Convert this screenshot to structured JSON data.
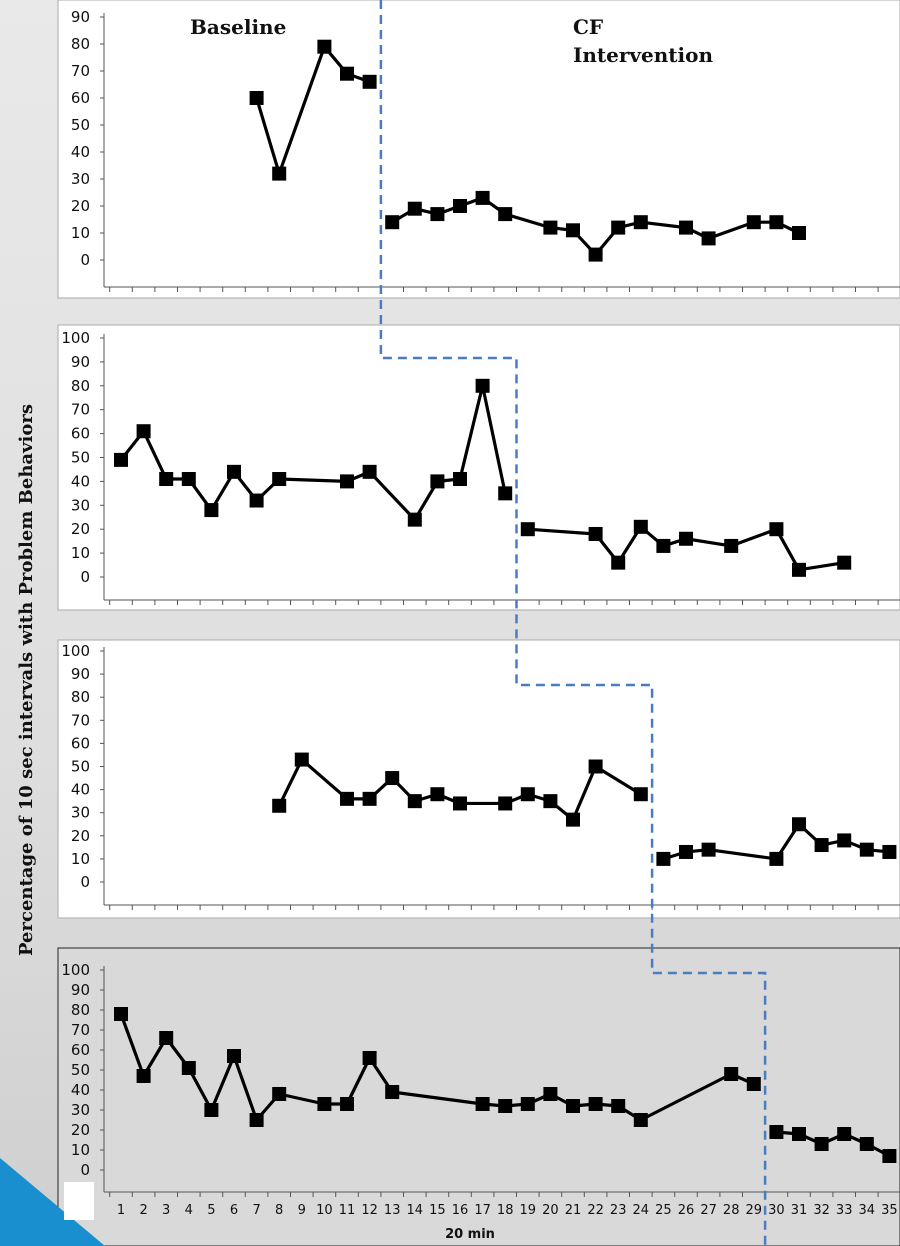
{
  "ylabel": "Percentage of 10 sec intervals with Problem Behaviors",
  "xlabel": "20 min",
  "phase_labels": {
    "baseline": "Baseline",
    "intervention_line1": "CF",
    "intervention_line2": "Intervention"
  },
  "colors": {
    "series": "#000000",
    "phase_line": "#4a7cc0",
    "corner_accent": "#1a8fd0"
  },
  "x_ticks": [
    "1",
    "2",
    "3",
    "4",
    "5",
    "6",
    "7",
    "8",
    "9",
    "10",
    "11",
    "12",
    "13",
    "14",
    "15",
    "16",
    "17",
    "18",
    "19",
    "20",
    "21",
    "22",
    "23",
    "24",
    "25",
    "26",
    "27",
    "28",
    "29",
    "30",
    "31",
    "32",
    "33",
    "34",
    "35"
  ],
  "chart_data": [
    {
      "type": "line",
      "ylim": [
        0,
        90
      ],
      "yticks": [
        "0",
        "10",
        "20",
        "30",
        "40",
        "50",
        "60",
        "70",
        "80",
        "90"
      ],
      "phase_change_after_session": 12,
      "series": [
        {
          "phase": "baseline",
          "x": [
            7,
            8,
            10,
            11,
            12
          ],
          "y": [
            60,
            32,
            79,
            69,
            66
          ]
        },
        {
          "phase": "intervention",
          "x": [
            13,
            14,
            15,
            16,
            17,
            18,
            20,
            21,
            22,
            23,
            24,
            26,
            27,
            29,
            30,
            31
          ],
          "y": [
            14,
            19,
            17,
            20,
            23,
            17,
            12,
            11,
            2,
            12,
            14,
            12,
            8,
            14,
            14,
            10
          ]
        }
      ]
    },
    {
      "type": "line",
      "ylim": [
        0,
        100
      ],
      "yticks": [
        "0",
        "10",
        "20",
        "30",
        "40",
        "50",
        "60",
        "70",
        "80",
        "90",
        "100"
      ],
      "phase_change_after_session": 18,
      "series": [
        {
          "phase": "baseline",
          "x": [
            1,
            2,
            3,
            4,
            5,
            6,
            7,
            8,
            11,
            12,
            14,
            15,
            16,
            17,
            18
          ],
          "y": [
            49,
            61,
            41,
            41,
            28,
            44,
            32,
            41,
            40,
            44,
            24,
            40,
            41,
            80,
            35
          ]
        },
        {
          "phase": "intervention",
          "x": [
            19,
            22,
            23,
            24,
            25,
            26,
            28,
            30,
            31,
            33
          ],
          "y": [
            20,
            18,
            6,
            21,
            13,
            16,
            13,
            20,
            3,
            6
          ]
        }
      ]
    },
    {
      "type": "line",
      "ylim": [
        0,
        100
      ],
      "yticks": [
        "0",
        "10",
        "20",
        "30",
        "40",
        "50",
        "60",
        "70",
        "80",
        "90",
        "100"
      ],
      "phase_change_after_session": 24,
      "series": [
        {
          "phase": "baseline",
          "x": [
            8,
            9,
            11,
            12,
            13,
            14,
            15,
            16,
            18,
            19,
            20,
            21,
            22,
            24
          ],
          "y": [
            33,
            53,
            36,
            36,
            45,
            35,
            38,
            34,
            34,
            38,
            35,
            27,
            50,
            38
          ]
        },
        {
          "phase": "intervention",
          "x": [
            25,
            26,
            27,
            30,
            31,
            32,
            33,
            34,
            35
          ],
          "y": [
            10,
            13,
            14,
            10,
            25,
            16,
            18,
            14,
            13
          ]
        }
      ]
    },
    {
      "type": "line",
      "ylim": [
        0,
        100
      ],
      "yticks": [
        "0",
        "10",
        "20",
        "30",
        "40",
        "50",
        "60",
        "70",
        "80",
        "90",
        "100"
      ],
      "phase_change_after_session": 29,
      "series": [
        {
          "phase": "baseline",
          "x": [
            1,
            2,
            3,
            4,
            5,
            6,
            7,
            8,
            10,
            11,
            12,
            13,
            17,
            18,
            19,
            20,
            21,
            22,
            23,
            24,
            28,
            29
          ],
          "y": [
            78,
            47,
            66,
            51,
            30,
            57,
            25,
            38,
            33,
            33,
            56,
            39,
            33,
            32,
            33,
            38,
            32,
            33,
            32,
            25,
            48,
            43
          ]
        },
        {
          "phase": "intervention",
          "x": [
            30,
            31,
            32,
            33,
            34,
            35
          ],
          "y": [
            19,
            18,
            13,
            18,
            13,
            7
          ]
        }
      ]
    }
  ]
}
